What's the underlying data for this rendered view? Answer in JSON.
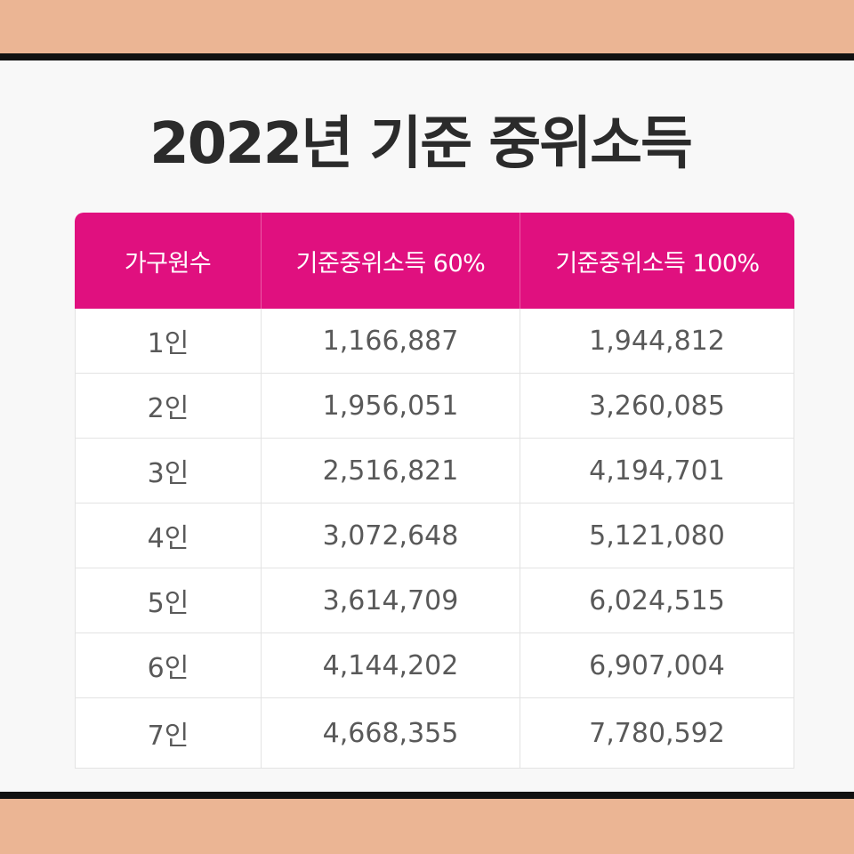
{
  "title": "2022년 기준 중위소득",
  "colors": {
    "outer_background": "#EBB594",
    "panel_background": "#F8F8F8",
    "header_background": "#E0107F",
    "header_text": "#FFFFFF",
    "cell_text": "#595959",
    "title_text": "#2B2B2B"
  },
  "table": {
    "headers": [
      "가구원수",
      "기준중위소득 60%",
      "기준중위소득 100%"
    ],
    "rows": [
      [
        "1인",
        "1,166,887",
        "1,944,812"
      ],
      [
        "2인",
        "1,956,051",
        "3,260,085"
      ],
      [
        "3인",
        "2,516,821",
        "4,194,701"
      ],
      [
        "4인",
        "3,072,648",
        "5,121,080"
      ],
      [
        "5인",
        "3,614,709",
        "6,024,515"
      ],
      [
        "6인",
        "4,144,202",
        "6,907,004"
      ],
      [
        "7인",
        "4,668,355",
        "7,780,592"
      ]
    ]
  }
}
